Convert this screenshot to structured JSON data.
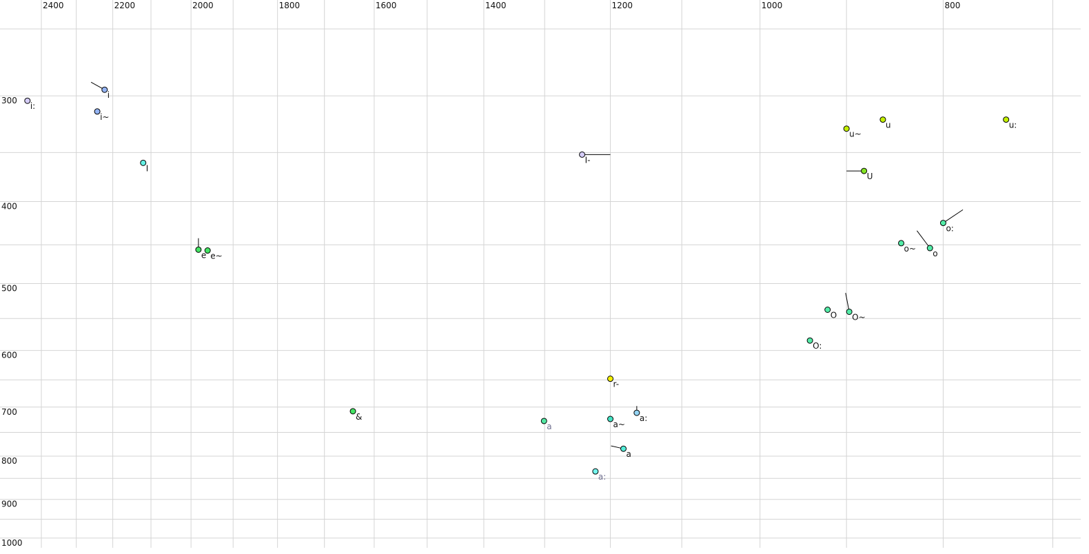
{
  "chart_data": {
    "type": "scatter",
    "title": "",
    "xlabel": "",
    "ylabel": "",
    "x_scale": "log",
    "y_scale": "log",
    "x_reversed": true,
    "x_axis_position": "top",
    "xlim": [
      2400,
      700
    ],
    "ylim": [
      250,
      1000
    ],
    "grid": true,
    "x_gridlines": [
      2400,
      2300,
      2200,
      2100,
      2000,
      1900,
      1800,
      1700,
      1600,
      1500,
      1400,
      1300,
      1200,
      1100,
      1000,
      900,
      800,
      700
    ],
    "y_gridlines": [
      250,
      300,
      350,
      400,
      450,
      500,
      550,
      600,
      650,
      700,
      750,
      800,
      850,
      900,
      950,
      1000
    ],
    "x_tick_labels": [
      "2400",
      "2200",
      "2000",
      "1800",
      "1600",
      "1400",
      "1200",
      "1000",
      "800"
    ],
    "y_tick_labels": [
      "300",
      "400",
      "500",
      "600",
      "700",
      "800",
      "900",
      "1000"
    ],
    "points": [
      {
        "label": "i:",
        "f2": 2441,
        "f1": 304,
        "color": "#d4ccf8"
      },
      {
        "label": "i",
        "f2": 2222,
        "f1": 295,
        "color": "#94b4f4",
        "from": {
          "f2": 2259,
          "f1": 289
        }
      },
      {
        "label": "i~",
        "f2": 2242,
        "f1": 313,
        "color": "#94b4f4"
      },
      {
        "label": "I",
        "f2": 2120,
        "f1": 360,
        "color": "#64f0e4"
      },
      {
        "label": "e",
        "f2": 1982,
        "f1": 456,
        "color": "#44e464",
        "from": {
          "f2": 1982,
          "f1": 442
        }
      },
      {
        "label": "e~",
        "f2": 1960,
        "f1": 457,
        "color": "#44e464"
      },
      {
        "label": "&",
        "f2": 1642,
        "f1": 708,
        "color": "#44e464"
      },
      {
        "label": "a",
        "f2": 1301,
        "f1": 727,
        "color": "#54e8a4",
        "label_color": "#707090"
      },
      {
        "label": "I-",
        "f2": 1242,
        "f1": 352,
        "color": "#d4ccf8",
        "from": {
          "f2": 1200,
          "f1": 352
        }
      },
      {
        "label": "r-",
        "f2": 1200,
        "f1": 648,
        "color": "#f4f000",
        "from": {
          "f2": 1200,
          "f1": 644
        }
      },
      {
        "label": "a~",
        "f2": 1200,
        "f1": 723,
        "color": "#44e4c4"
      },
      {
        "label": "a:",
        "f2": 1162,
        "f1": 711,
        "color": "#94d4f4",
        "from": {
          "f2": 1162,
          "f1": 698
        }
      },
      {
        "label": "a",
        "f2": 1181,
        "f1": 784,
        "color": "#54ecd8",
        "from": {
          "f2": 1199,
          "f1": 778
        }
      },
      {
        "label": "a:",
        "f2": 1222,
        "f1": 834,
        "color": "#74f4ec",
        "label_color": "#707090"
      },
      {
        "label": "O:",
        "f2": 941,
        "f1": 584,
        "color": "#54eca8"
      },
      {
        "label": "O",
        "f2": 921,
        "f1": 537,
        "color": "#54eca8"
      },
      {
        "label": "O~",
        "f2": 897,
        "f1": 540,
        "color": "#54eca8",
        "from": {
          "f2": 901,
          "f1": 513
        }
      },
      {
        "label": "o~",
        "f2": 842,
        "f1": 448,
        "color": "#54eca8"
      },
      {
        "label": "o",
        "f2": 813,
        "f1": 454,
        "color": "#54eca8",
        "from": {
          "f2": 826,
          "f1": 433
        }
      },
      {
        "label": "o:",
        "f2": 800,
        "f1": 424,
        "color": "#54eca8",
        "from": {
          "f2": 781,
          "f1": 409
        }
      },
      {
        "label": "U",
        "f2": 881,
        "f1": 368,
        "color": "#84e424",
        "from": {
          "f2": 900,
          "f1": 368
        }
      },
      {
        "label": "u~",
        "f2": 900,
        "f1": 328,
        "color": "#c4f000"
      },
      {
        "label": "u",
        "f2": 861,
        "f1": 320,
        "color": "#c4f000"
      },
      {
        "label": "u:",
        "f2": 741,
        "f1": 320,
        "color": "#c4f000"
      }
    ]
  }
}
